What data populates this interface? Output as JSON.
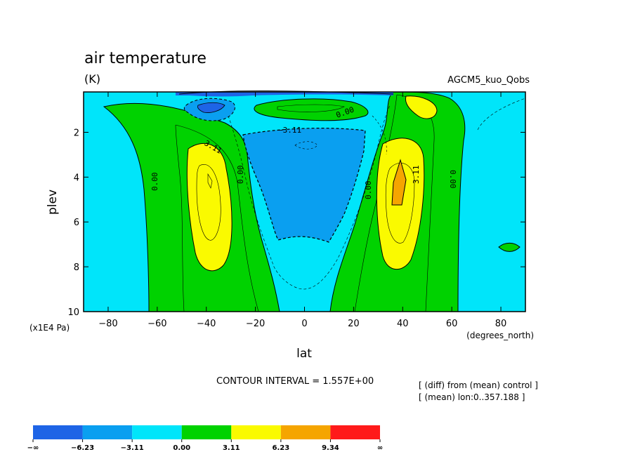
{
  "chart_data": {
    "type": "contour",
    "title": "air temperature",
    "units": "(K)",
    "experiment": "AGCM5_kuo_Qobs",
    "xlabel": "lat",
    "x_units": "(degrees_north)",
    "ylabel": "plev",
    "y_units": "(x1E4 Pa)",
    "xlim": [
      -90,
      90
    ],
    "ylim": [
      10,
      0.2
    ],
    "x_ticks": [
      -80,
      -60,
      -40,
      -20,
      0,
      20,
      40,
      60,
      80
    ],
    "x_tick_labels": [
      "−80",
      "−60",
      "−40",
      "−20",
      "0",
      "20",
      "40",
      "60",
      "80"
    ],
    "y_ticks": [
      2,
      4,
      6,
      8,
      10
    ],
    "y_tick_labels": [
      "2",
      "4",
      "6",
      "8",
      "10"
    ],
    "contour_interval_text": "CONTOUR INTERVAL = 1.557E+00",
    "notes": [
      "[ (diff) from (mean) control ]",
      "[ (mean) lon:0..357.188 ]"
    ],
    "contour_labels": [
      "0.00",
      "0.00",
      "0.00",
      "0.00",
      "0.00",
      "3.11",
      "3.11",
      "3.11",
      "−3.11"
    ],
    "levels": [
      -6.23,
      -3.11,
      0.0,
      3.11,
      6.23,
      9.34
    ],
    "colorbar": {
      "colors": [
        "#1e64e6",
        "#0a9ff0",
        "#00e5fa",
        "#00d200",
        "#fafa00",
        "#f5a500",
        "#ff1a1a"
      ],
      "labels": [
        "−∞",
        "−6.23",
        "−3.11",
        "0.00",
        "3.11",
        "6.23",
        "9.34",
        "∞"
      ]
    },
    "regions": [
      {
        "name": "background",
        "level": "0 to -1.56",
        "color": "#00e5fa"
      },
      {
        "name": "sh-green-band",
        "level": "0 to 3.11",
        "color": "#00d200"
      },
      {
        "name": "sh-yellow-core",
        "level": "3.11 to 6.23",
        "color": "#fafa00"
      },
      {
        "name": "nh-green-band",
        "level": "0 to 3.11",
        "color": "#00d200"
      },
      {
        "name": "nh-yellow-core",
        "level": "3.11 to 6.23",
        "color": "#fafa00"
      },
      {
        "name": "nh-orange-peak",
        "level": "6.23 to 9.34",
        "color": "#f5a500"
      },
      {
        "name": "tropical-cold-block",
        "level": "-3.11 to -6.23",
        "color": "#0a9ff0"
      },
      {
        "name": "tropopause-green-patch",
        "level": "0 to 3.11",
        "color": "#00d200"
      },
      {
        "name": "sh-top-cold",
        "level": "below -6.23",
        "color": "#1e64e6"
      }
    ]
  }
}
